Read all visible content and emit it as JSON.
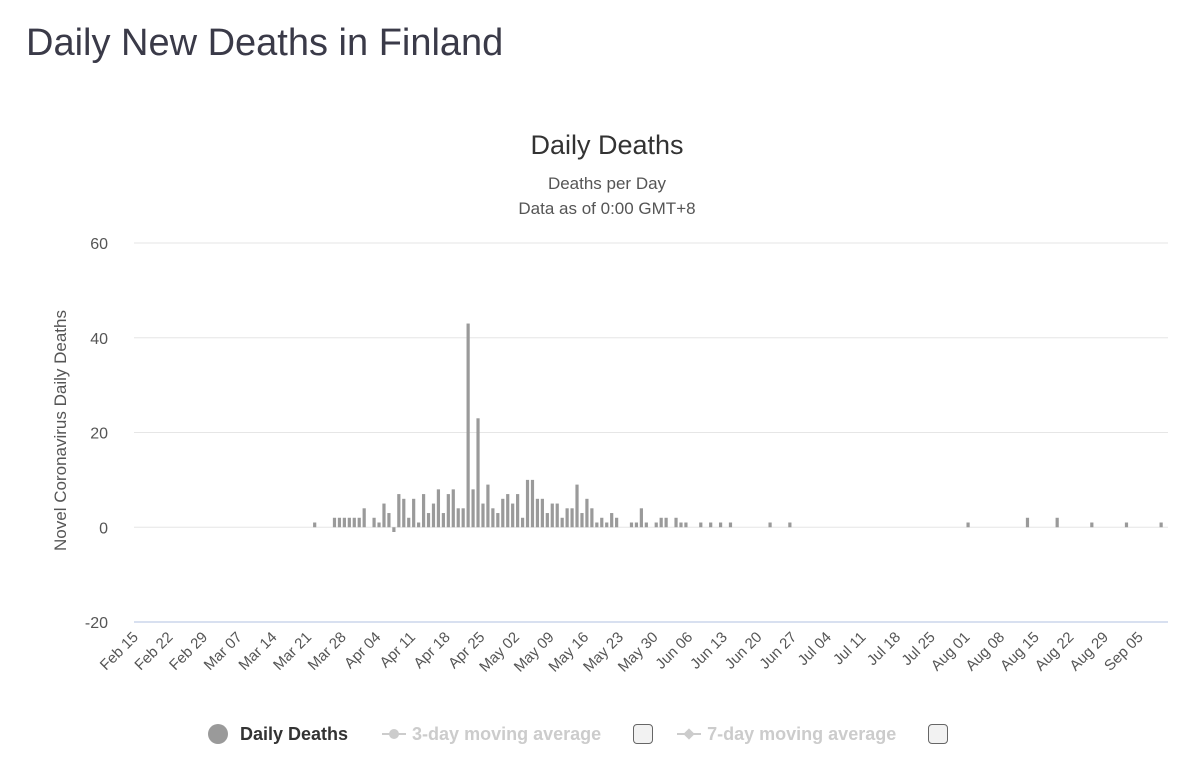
{
  "page": {
    "title": "Daily New Deaths in Finland"
  },
  "legend": {
    "series_label": "Daily Deaths",
    "ma3_label": "3-day moving average",
    "ma7_label": "7-day moving average"
  },
  "colors": {
    "bar": "#9a9a9a",
    "grid": "#e6e6e6",
    "axis": "#ccd6eb",
    "legend_muted": "#cccccc"
  },
  "chart_data": {
    "type": "bar",
    "title": "Daily Deaths",
    "subtitle": [
      "Deaths per Day",
      "Data as of 0:00 GMT+8"
    ],
    "xlabel": "",
    "ylabel": "Novel Coronavirus Daily Deaths",
    "ylim": [
      -20,
      60
    ],
    "yticks": [
      -20,
      0,
      20,
      40,
      60
    ],
    "grid": true,
    "legend": "bottom",
    "x_start": "Feb 15",
    "xtick_labels": [
      "Feb 15",
      "Feb 22",
      "Feb 29",
      "Mar 07",
      "Mar 14",
      "Mar 21",
      "Mar 28",
      "Apr 04",
      "Apr 11",
      "Apr 18",
      "Apr 25",
      "May 02",
      "May 09",
      "May 16",
      "May 23",
      "May 30",
      "Jun 06",
      "Jun 13",
      "Jun 20",
      "Jun 27",
      "Jul 04",
      "Jul 11",
      "Jul 18",
      "Jul 25",
      "Aug 01",
      "Aug 08",
      "Aug 15",
      "Aug 22",
      "Aug 29",
      "Sep 05"
    ],
    "series": [
      {
        "name": "Daily Deaths",
        "values": [
          0,
          0,
          0,
          0,
          0,
          0,
          0,
          0,
          0,
          0,
          0,
          0,
          0,
          0,
          0,
          0,
          0,
          0,
          0,
          0,
          0,
          0,
          0,
          0,
          0,
          0,
          0,
          0,
          0,
          0,
          0,
          0,
          0,
          0,
          0,
          0,
          1,
          0,
          0,
          0,
          2,
          2,
          2,
          2,
          2,
          2,
          4,
          0,
          2,
          1,
          5,
          3,
          -1,
          7,
          6,
          2,
          6,
          1,
          7,
          3,
          5,
          8,
          3,
          7,
          8,
          4,
          4,
          43,
          8,
          23,
          5,
          9,
          4,
          3,
          6,
          7,
          5,
          7,
          2,
          10,
          10,
          6,
          6,
          3,
          5,
          5,
          2,
          4,
          4,
          9,
          3,
          6,
          4,
          1,
          2,
          1,
          3,
          2,
          0,
          0,
          1,
          1,
          4,
          1,
          0,
          1,
          2,
          2,
          0,
          2,
          1,
          1,
          0,
          0,
          1,
          0,
          1,
          0,
          1,
          0,
          1,
          0,
          0,
          0,
          0,
          0,
          0,
          0,
          1,
          0,
          0,
          0,
          1,
          0,
          0,
          0,
          0,
          0,
          0,
          0,
          0,
          0,
          0,
          0,
          0,
          0,
          0,
          0,
          0,
          0,
          0,
          0,
          0,
          0,
          0,
          0,
          0,
          0,
          0,
          0,
          0,
          0,
          0,
          0,
          0,
          0,
          0,
          0,
          1,
          0,
          0,
          0,
          0,
          0,
          0,
          0,
          0,
          0,
          0,
          0,
          2,
          0,
          0,
          0,
          0,
          0,
          2,
          0,
          0,
          0,
          0,
          0,
          0,
          1,
          0,
          0,
          0,
          0,
          0,
          0,
          1,
          0,
          0,
          0,
          0,
          0,
          0,
          1,
          0,
          0,
          0,
          0,
          0,
          0,
          0
        ]
      }
    ]
  }
}
